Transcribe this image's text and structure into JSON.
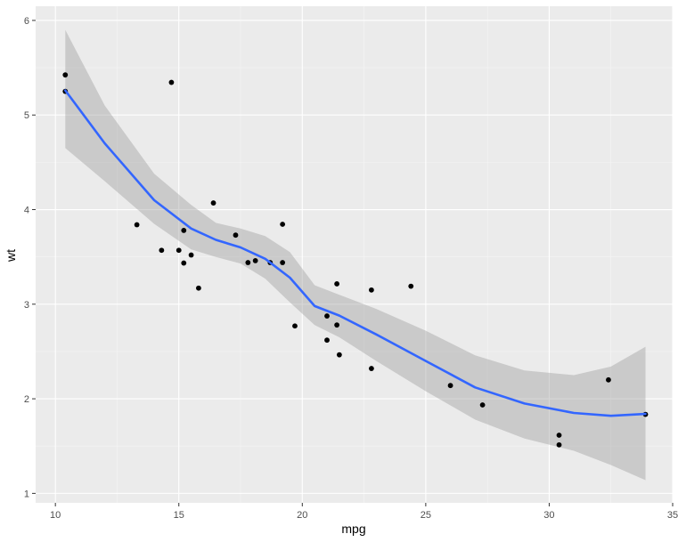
{
  "chart_data": {
    "type": "scatter",
    "xlabel": "mpg",
    "ylabel": "wt",
    "xlim": [
      9.2,
      35.0
    ],
    "ylim": [
      0.9,
      6.15
    ],
    "x_ticks": [
      10,
      15,
      20,
      25,
      30,
      35
    ],
    "y_ticks": [
      1,
      2,
      3,
      4,
      5,
      6
    ],
    "x_tick_labels": [
      "10",
      "15",
      "20",
      "25",
      "30",
      "35"
    ],
    "y_tick_labels": [
      "1",
      "2",
      "3",
      "4",
      "5",
      "6"
    ],
    "grid": true,
    "legend": "none",
    "colors": {
      "panel_background": "#ebebeb",
      "grid_major": "#ffffff",
      "grid_minor": "#f5f5f5",
      "points": "#000000",
      "smooth_line": "#3366ff",
      "confidence_band": "#999999"
    },
    "points": [
      {
        "x": 21.0,
        "y": 2.62
      },
      {
        "x": 21.0,
        "y": 2.875
      },
      {
        "x": 22.8,
        "y": 2.32
      },
      {
        "x": 21.4,
        "y": 3.215
      },
      {
        "x": 18.7,
        "y": 3.44
      },
      {
        "x": 18.1,
        "y": 3.46
      },
      {
        "x": 14.3,
        "y": 3.57
      },
      {
        "x": 24.4,
        "y": 3.19
      },
      {
        "x": 22.8,
        "y": 3.15
      },
      {
        "x": 19.2,
        "y": 3.44
      },
      {
        "x": 17.8,
        "y": 3.44
      },
      {
        "x": 16.4,
        "y": 4.07
      },
      {
        "x": 17.3,
        "y": 3.73
      },
      {
        "x": 15.2,
        "y": 3.78
      },
      {
        "x": 10.4,
        "y": 5.25
      },
      {
        "x": 10.4,
        "y": 5.424
      },
      {
        "x": 14.7,
        "y": 5.345
      },
      {
        "x": 32.4,
        "y": 2.2
      },
      {
        "x": 30.4,
        "y": 1.615
      },
      {
        "x": 33.9,
        "y": 1.835
      },
      {
        "x": 21.5,
        "y": 2.465
      },
      {
        "x": 15.5,
        "y": 3.52
      },
      {
        "x": 15.2,
        "y": 3.435
      },
      {
        "x": 13.3,
        "y": 3.84
      },
      {
        "x": 19.2,
        "y": 3.845
      },
      {
        "x": 27.3,
        "y": 1.935
      },
      {
        "x": 26.0,
        "y": 2.14
      },
      {
        "x": 30.4,
        "y": 1.513
      },
      {
        "x": 15.8,
        "y": 3.17
      },
      {
        "x": 19.7,
        "y": 2.77
      },
      {
        "x": 15.0,
        "y": 3.57
      },
      {
        "x": 21.4,
        "y": 2.78
      }
    ],
    "smooth": {
      "x": [
        10.4,
        12.0,
        14.0,
        15.5,
        16.5,
        17.5,
        18.5,
        19.5,
        20.5,
        21.5,
        23.0,
        25.0,
        27.0,
        29.0,
        31.0,
        32.5,
        33.9
      ],
      "y": [
        5.26,
        4.7,
        4.1,
        3.8,
        3.68,
        3.6,
        3.48,
        3.28,
        2.98,
        2.88,
        2.68,
        2.4,
        2.12,
        1.95,
        1.85,
        1.82,
        1.84
      ],
      "lower": [
        4.65,
        4.3,
        3.85,
        3.58,
        3.5,
        3.43,
        3.27,
        3.02,
        2.78,
        2.65,
        2.4,
        2.08,
        1.78,
        1.58,
        1.45,
        1.3,
        1.14
      ],
      "upper": [
        5.9,
        5.1,
        4.38,
        4.05,
        3.86,
        3.8,
        3.72,
        3.55,
        3.2,
        3.1,
        2.95,
        2.72,
        2.46,
        2.3,
        2.25,
        2.34,
        2.55
      ]
    }
  }
}
